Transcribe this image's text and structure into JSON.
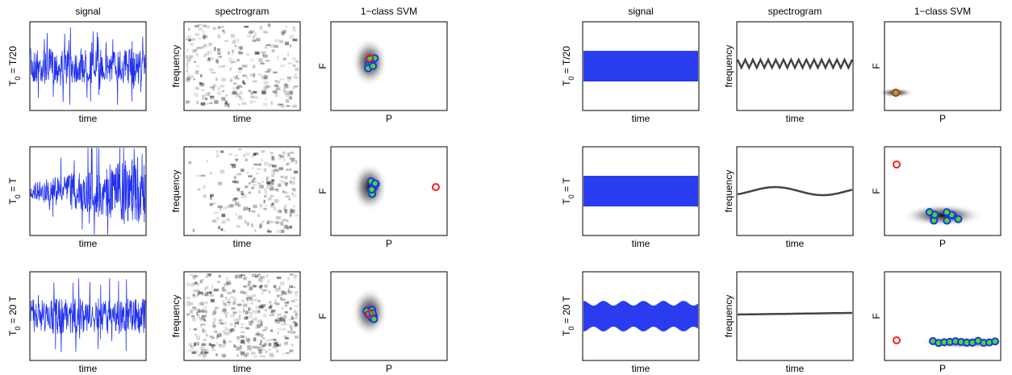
{
  "groups": [
    {
      "columns": [
        {
          "title": "signal",
          "xlabel": "time"
        },
        {
          "title": "spectrogram",
          "xlabel": "time",
          "ylabel": "frequency"
        },
        {
          "title": "1−class SVM",
          "xlabel": "P",
          "ylabel": "F"
        }
      ],
      "rows": [
        {
          "symbol": "T",
          "subscript": "0",
          "value": " = T/20"
        },
        {
          "symbol": "T",
          "subscript": "0",
          "value": " = T"
        },
        {
          "symbol": "T",
          "subscript": "0",
          "value": " = 20 T"
        }
      ]
    },
    {
      "columns": [
        {
          "title": "signal",
          "xlabel": "time"
        },
        {
          "title": "spectrogram",
          "xlabel": "time",
          "ylabel": "frequency"
        },
        {
          "title": "1−class SVM",
          "xlabel": "P",
          "ylabel": "F"
        }
      ],
      "rows": [
        {
          "symbol": "T",
          "subscript": "0",
          "value": " = T/20"
        },
        {
          "symbol": "T",
          "subscript": "0",
          "value": " = T"
        },
        {
          "symbol": "T",
          "subscript": "0",
          "value": " = 20 T"
        }
      ]
    }
  ]
}
